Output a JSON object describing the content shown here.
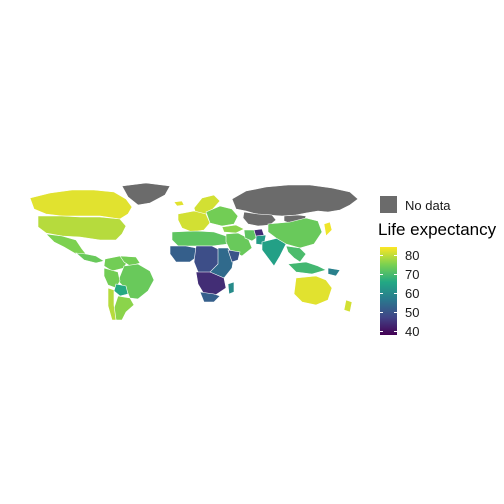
{
  "legend": {
    "no_data_label": "No data",
    "no_data_color": "#6b6b6b",
    "title": "Life expectancy",
    "ticks": [
      {
        "value": 80,
        "label": "80"
      },
      {
        "value": 70,
        "label": "70"
      },
      {
        "value": 60,
        "label": "60"
      },
      {
        "value": 50,
        "label": "50"
      },
      {
        "value": 40,
        "label": "40"
      }
    ],
    "range": [
      38,
      84
    ],
    "palette": [
      "#440154",
      "#414487",
      "#2a788e",
      "#22a884",
      "#7ad151",
      "#fde725"
    ]
  },
  "map_data": {
    "type": "choropleth",
    "projection": "equirectangular",
    "no_data_regions": [
      "Russia",
      "Greenland",
      "Kazakhstan",
      "Mongolia"
    ],
    "regions": [
      {
        "name": "Canada",
        "value": 82
      },
      {
        "name": "United States",
        "value": 79
      },
      {
        "name": "Mexico",
        "value": 75
      },
      {
        "name": "Central America",
        "value": 73
      },
      {
        "name": "Colombia",
        "value": 74
      },
      {
        "name": "Venezuela",
        "value": 74
      },
      {
        "name": "Brazil",
        "value": 73
      },
      {
        "name": "Peru",
        "value": 74
      },
      {
        "name": "Bolivia",
        "value": 66
      },
      {
        "name": "Argentina",
        "value": 76
      },
      {
        "name": "Chile",
        "value": 79
      },
      {
        "name": "Iceland",
        "value": 82
      },
      {
        "name": "Scandinavia",
        "value": 81
      },
      {
        "name": "Western Europe",
        "value": 81
      },
      {
        "name": "Eastern Europe",
        "value": 74
      },
      {
        "name": "North Africa",
        "value": 72
      },
      {
        "name": "Turkey",
        "value": 76
      },
      {
        "name": "Middle East",
        "value": 73
      },
      {
        "name": "Iran",
        "value": 72
      },
      {
        "name": "Afghanistan",
        "value": 44
      },
      {
        "name": "Pakistan",
        "value": 63
      },
      {
        "name": "India",
        "value": 64
      },
      {
        "name": "China",
        "value": 73
      },
      {
        "name": "Japan",
        "value": 83
      },
      {
        "name": "Southeast Asia",
        "value": 70
      },
      {
        "name": "Indonesia",
        "value": 69
      },
      {
        "name": "Papua New Guinea",
        "value": 58
      },
      {
        "name": "Australia",
        "value": 82
      },
      {
        "name": "New Zealand",
        "value": 81
      },
      {
        "name": "West Africa",
        "value": 52
      },
      {
        "name": "Central Africa",
        "value": 49
      },
      {
        "name": "East Africa",
        "value": 54
      },
      {
        "name": "Horn of Africa",
        "value": 50
      },
      {
        "name": "Southern Africa",
        "value": 44
      },
      {
        "name": "South Africa",
        "value": 52
      },
      {
        "name": "Madagascar",
        "value": 60
      }
    ]
  }
}
